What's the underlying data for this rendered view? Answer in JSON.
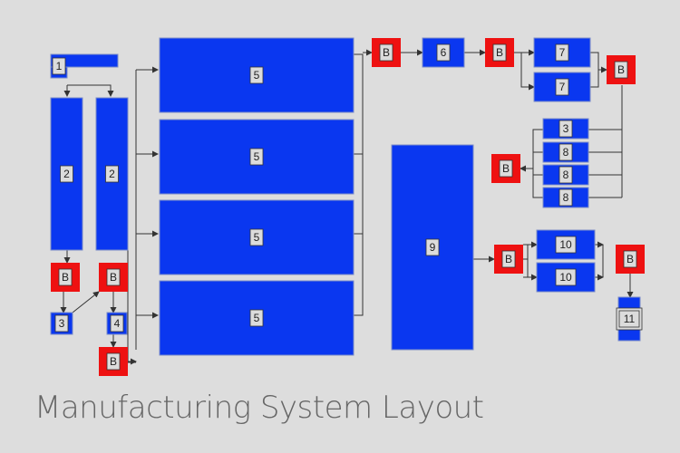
{
  "title": "Manufacturing System Layout",
  "colors": {
    "block": "#0a37f0",
    "buffer": "#ee1111",
    "label_bg": "#dcdcdc",
    "background": "#dddddd"
  },
  "blocks": [
    {
      "id": "m1",
      "label": "1"
    },
    {
      "id": "m2a",
      "label": "2"
    },
    {
      "id": "m2b",
      "label": "2"
    },
    {
      "id": "m3a",
      "label": "3"
    },
    {
      "id": "m4",
      "label": "4"
    },
    {
      "id": "m5a",
      "label": "5"
    },
    {
      "id": "m5b",
      "label": "5"
    },
    {
      "id": "m5c",
      "label": "5"
    },
    {
      "id": "m5d",
      "label": "5"
    },
    {
      "id": "m6",
      "label": "6"
    },
    {
      "id": "m7a",
      "label": "7"
    },
    {
      "id": "m7b",
      "label": "7"
    },
    {
      "id": "m3b",
      "label": "3"
    },
    {
      "id": "m8a",
      "label": "8"
    },
    {
      "id": "m8b",
      "label": "8"
    },
    {
      "id": "m8c",
      "label": "8"
    },
    {
      "id": "m9",
      "label": "9"
    },
    {
      "id": "m10a",
      "label": "10"
    },
    {
      "id": "m10b",
      "label": "10"
    },
    {
      "id": "m11",
      "label": "11"
    }
  ],
  "buffers": [
    {
      "id": "b1",
      "label": "B"
    },
    {
      "id": "b2",
      "label": "B"
    },
    {
      "id": "b3",
      "label": "B"
    },
    {
      "id": "b4",
      "label": "B"
    },
    {
      "id": "b5",
      "label": "B"
    },
    {
      "id": "b6",
      "label": "B"
    },
    {
      "id": "b7",
      "label": "B"
    },
    {
      "id": "b8",
      "label": "B"
    },
    {
      "id": "b9",
      "label": "B"
    }
  ]
}
